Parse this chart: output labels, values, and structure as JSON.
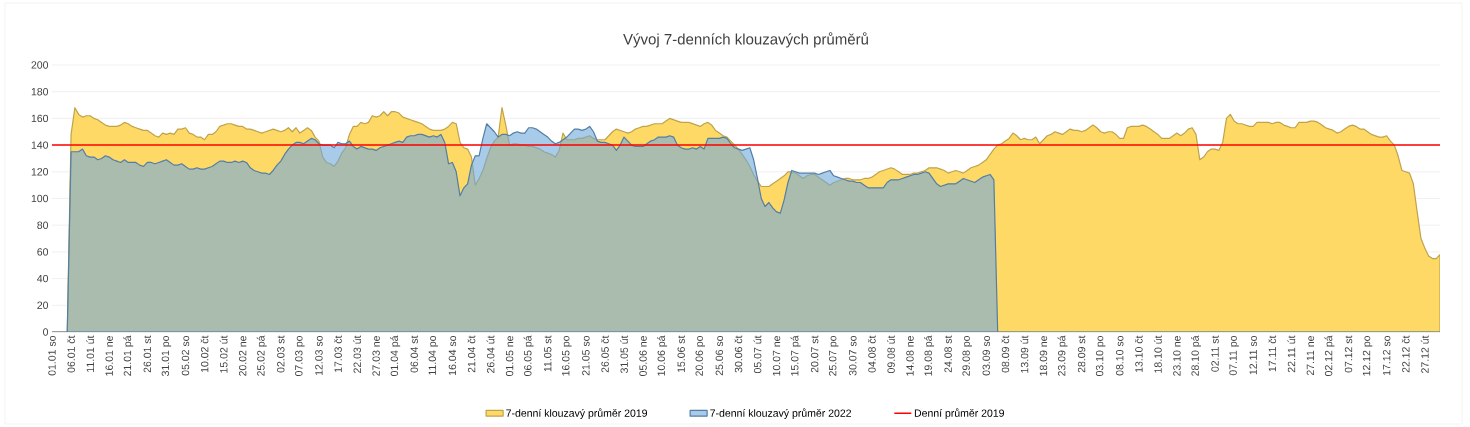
{
  "chart_data": {
    "type": "area",
    "title": "Vývoj 7-denních klouzavých průměrů",
    "categories": [
      "01.01 so",
      null,
      null,
      null,
      null,
      "06.01 čt",
      null,
      null,
      null,
      null,
      "11.01 út",
      null,
      null,
      null,
      null,
      "16.01 ne",
      null,
      null,
      null,
      null,
      "21.01 pá",
      null,
      null,
      null,
      null,
      "26.01 st",
      null,
      null,
      null,
      null,
      "31.01 po",
      null,
      null,
      null,
      null,
      "05.02 so",
      null,
      null,
      null,
      null,
      "10.02 čt",
      null,
      null,
      null,
      null,
      "15.02 út",
      null,
      null,
      null,
      null,
      "20.02 ne",
      null,
      null,
      null,
      null,
      "25.02 pá",
      null,
      null,
      null,
      null,
      "02.03 st",
      null,
      null,
      null,
      null,
      "07.03 po",
      null,
      null,
      null,
      null,
      "12.03 so",
      null,
      null,
      null,
      null,
      "17.03 čt",
      null,
      null,
      null,
      null,
      "22.03 út",
      null,
      null,
      null,
      null,
      "27.03 ne",
      null,
      null,
      null,
      null,
      "01.04 pá",
      null,
      null,
      null,
      null,
      "06.04 st",
      null,
      null,
      null,
      null,
      "11.04 po",
      null,
      null,
      null,
      null,
      "16.04 so",
      null,
      null,
      null,
      null,
      "21.04 čt",
      null,
      null,
      null,
      null,
      "26.04 út",
      null,
      null,
      null,
      null,
      "01.05 ne",
      null,
      null,
      null,
      null,
      "06.05 pá",
      null,
      null,
      null,
      null,
      "11.05 st",
      null,
      null,
      null,
      null,
      "16.05 po",
      null,
      null,
      null,
      null,
      "21.05 so",
      null,
      null,
      null,
      null,
      "26.05 čt",
      null,
      null,
      null,
      null,
      "31.05 út",
      null,
      null,
      null,
      null,
      "05.06 ne",
      null,
      null,
      null,
      null,
      "10.06 pá",
      null,
      null,
      null,
      null,
      "15.06 st",
      null,
      null,
      null,
      null,
      "20.06 po",
      null,
      null,
      null,
      null,
      "25.06 so",
      null,
      null,
      null,
      null,
      "30.06 čt",
      null,
      null,
      null,
      null,
      "05.07 út",
      null,
      null,
      null,
      null,
      "10.07 ne",
      null,
      null,
      null,
      null,
      "15.07 pá",
      null,
      null,
      null,
      null,
      "20.07 st",
      null,
      null,
      null,
      null,
      "25.07 po",
      null,
      null,
      null,
      null,
      "30.07 so",
      null,
      null,
      null,
      null,
      "04.08 čt",
      null,
      null,
      null,
      null,
      "09.08 út",
      null,
      null,
      null,
      null,
      "14.08 ne",
      null,
      null,
      null,
      null,
      "19.08 pá",
      null,
      null,
      null,
      null,
      "24.08 st",
      null,
      null,
      null,
      null,
      "29.08 po",
      null,
      null,
      null,
      null,
      "03.09 so",
      null,
      null,
      null,
      null,
      "08.09 čt",
      null,
      null,
      null,
      null,
      "13.09 út",
      null,
      null,
      null,
      null,
      "18.09 ne",
      null,
      null,
      null,
      null,
      "23.09 pá",
      null,
      null,
      null,
      null,
      "28.09 st",
      null,
      null,
      null,
      null,
      "03.10 po",
      null,
      null,
      null,
      null,
      "08.10 so",
      null,
      null,
      null,
      null,
      "13.10 čt",
      null,
      null,
      null,
      null,
      "18.10 út",
      null,
      null,
      null,
      null,
      "23.10 ne",
      null,
      null,
      null,
      null,
      "28.10 pá",
      null,
      null,
      null,
      null,
      "02.11 st",
      null,
      null,
      null,
      null,
      "07.11 po",
      null,
      null,
      null,
      null,
      "12.11 so",
      null,
      null,
      null,
      null,
      "17.11 čt",
      null,
      null,
      null,
      null,
      "22.11 út",
      null,
      null,
      null,
      null,
      "27.11 ne",
      null,
      null,
      null,
      null,
      "02.12 pá",
      null,
      null,
      null,
      null,
      "07.12 st",
      null,
      null,
      null,
      null,
      "12.12 po",
      null,
      null,
      null,
      null,
      "17.12 so",
      null,
      null,
      null,
      null,
      "22.12 čt",
      null,
      null,
      null,
      null,
      "27.12 út",
      null,
      null,
      null,
      null
    ],
    "series": [
      {
        "name": "7-denní klouzavý průměr 2019",
        "color": "#ffd966",
        "values": [
          0,
          0,
          0,
          0,
          0,
          148,
          168,
          163,
          161,
          162,
          162,
          160,
          159,
          157,
          155,
          154,
          154,
          154,
          155,
          157,
          156,
          154,
          153,
          152,
          151,
          151,
          149,
          147,
          146,
          149,
          148,
          149,
          148,
          152,
          152,
          153,
          149,
          148,
          146,
          146,
          144,
          148,
          148,
          150,
          154,
          155,
          156,
          156,
          155,
          154,
          154,
          152,
          152,
          151,
          150,
          149,
          150,
          151,
          152,
          151,
          150,
          151,
          153,
          150,
          153,
          149,
          151,
          153,
          151,
          146,
          143,
          131,
          127,
          126,
          124,
          128,
          134,
          138,
          148,
          154,
          154,
          157,
          156,
          157,
          162,
          161,
          162,
          165,
          162,
          165,
          165,
          164,
          161,
          160,
          159,
          158,
          157,
          156,
          154,
          152,
          151,
          151,
          151,
          152,
          154,
          157,
          156,
          142,
          138,
          137,
          131,
          110,
          115,
          121,
          130,
          138,
          143,
          146,
          168,
          155,
          140,
          141,
          141,
          140,
          140,
          139,
          139,
          138,
          137,
          135,
          134,
          133,
          131,
          136,
          149,
          144,
          144,
          144,
          145,
          145,
          146,
          147,
          145,
          144,
          144,
          144,
          147,
          150,
          152,
          151,
          150,
          149,
          150,
          152,
          153,
          154,
          154,
          155,
          156,
          156,
          156,
          158,
          160,
          159,
          158,
          157,
          157,
          157,
          156,
          155,
          154,
          156,
          157,
          155,
          151,
          149,
          147,
          146,
          143,
          140,
          137,
          133,
          129,
          124,
          118,
          113,
          109,
          109,
          109,
          111,
          113,
          115,
          117,
          120,
          120,
          119,
          117,
          115,
          117,
          118,
          118,
          116,
          114,
          112,
          110,
          112,
          113,
          114,
          115,
          115,
          114,
          114,
          114,
          115,
          115,
          116,
          118,
          120,
          121,
          122,
          123,
          122,
          120,
          118,
          118,
          118,
          119,
          119,
          120,
          121,
          123,
          123,
          123,
          122,
          121,
          119,
          120,
          121,
          120,
          119,
          121,
          123,
          124,
          125,
          127,
          129,
          133,
          137,
          140,
          141,
          143,
          145,
          149,
          147,
          144,
          145,
          144,
          144,
          146,
          141,
          144,
          147,
          148,
          150,
          149,
          148,
          150,
          152,
          151,
          151,
          150,
          151,
          153,
          155,
          153,
          150,
          149,
          150,
          150,
          148,
          145,
          145,
          153,
          154,
          154,
          154,
          155,
          154,
          152,
          150,
          148,
          145,
          145,
          145,
          147,
          149,
          147,
          149,
          152,
          153,
          148,
          129,
          131,
          135,
          137,
          137,
          136,
          142,
          160,
          163,
          158,
          156,
          156,
          155,
          154,
          154,
          157,
          157,
          157,
          157,
          156,
          157,
          157,
          155,
          154,
          153,
          153,
          157,
          157,
          157,
          158,
          158,
          157,
          155,
          153,
          152,
          151,
          149,
          150,
          152,
          154,
          155,
          154,
          152,
          152,
          150,
          148,
          147,
          146,
          146,
          147,
          143,
          140,
          132,
          121,
          120,
          119,
          111,
          90,
          70,
          63,
          57,
          55,
          55,
          58
        ]
      },
      {
        "name": "7-denní klouzavý průměr 2022",
        "color": "#6fa8dc",
        "values": [
          0,
          0,
          0,
          0,
          0,
          135,
          135,
          135,
          137,
          132,
          131,
          131,
          129,
          130,
          132,
          131,
          129,
          128,
          127,
          129,
          127,
          127,
          127,
          125,
          124,
          127,
          127,
          126,
          127,
          128,
          129,
          127,
          125,
          125,
          126,
          124,
          122,
          122,
          123,
          122,
          122,
          123,
          124,
          126,
          128,
          128,
          127,
          127,
          128,
          127,
          128,
          127,
          123,
          121,
          120,
          119,
          119,
          118,
          121,
          125,
          128,
          133,
          137,
          140,
          142,
          142,
          141,
          143,
          145,
          144,
          141,
          140,
          140,
          140,
          138,
          142,
          141,
          141,
          143,
          139,
          137,
          139,
          138,
          137,
          137,
          136,
          138,
          139,
          140,
          141,
          142,
          143,
          142,
          146,
          147,
          147,
          148,
          148,
          147,
          146,
          147,
          146,
          148,
          142,
          126,
          127,
          120,
          102,
          108,
          111,
          125,
          132,
          132,
          145,
          156,
          153,
          150,
          146,
          148,
          148,
          147,
          149,
          150,
          149,
          149,
          153,
          153,
          152,
          150,
          148,
          146,
          143,
          141,
          142,
          144,
          146,
          149,
          152,
          152,
          151,
          152,
          154,
          150,
          143,
          142,
          142,
          141,
          140,
          136,
          140,
          146,
          143,
          140,
          139,
          139,
          139,
          141,
          143,
          144,
          146,
          146,
          146,
          147,
          146,
          140,
          138,
          137,
          137,
          138,
          137,
          139,
          137,
          145,
          145,
          145,
          145,
          146,
          145,
          141,
          138,
          137,
          136,
          137,
          138,
          129,
          115,
          100,
          94,
          97,
          93,
          90,
          89,
          99,
          112,
          121,
          120,
          119,
          119,
          119,
          119,
          119,
          118,
          119,
          120,
          121,
          117,
          116,
          115,
          114,
          113,
          113,
          112,
          112,
          110,
          108,
          108,
          108,
          108,
          108,
          112,
          114,
          114,
          114,
          115,
          116,
          117,
          118,
          118,
          119,
          120,
          119,
          115,
          111,
          109,
          110,
          111,
          111,
          111,
          113,
          115,
          114,
          113,
          112,
          114,
          116,
          117,
          118,
          114,
          0,
          0,
          0,
          0,
          0,
          0,
          0,
          0,
          0,
          0,
          0,
          0,
          0,
          0,
          0,
          0,
          0,
          0,
          0,
          0,
          0,
          0,
          0,
          0,
          0,
          0,
          0,
          0,
          0,
          0,
          0,
          0,
          0,
          0,
          0,
          0,
          0,
          0,
          0,
          0,
          0,
          0,
          0,
          0,
          0,
          0,
          0,
          0,
          0,
          0,
          0,
          0,
          0,
          0,
          0,
          0,
          0,
          0,
          0,
          0,
          0,
          0,
          0,
          0,
          0,
          0,
          0,
          0,
          0,
          0,
          0,
          0,
          0,
          0,
          0,
          0,
          0,
          0,
          0,
          0,
          0,
          0,
          0,
          0,
          0,
          0,
          0,
          0,
          0,
          0,
          0,
          0,
          0,
          0,
          0,
          0,
          0,
          0,
          0,
          0,
          0,
          0,
          0,
          0,
          0,
          0,
          0,
          0,
          0,
          0,
          0,
          0,
          0,
          0,
          0,
          0,
          0
        ]
      }
    ],
    "ref_lines": [
      {
        "axis": "y",
        "value": 140,
        "label": "Denní průměr 2019",
        "color": "#ff0000"
      }
    ],
    "ylim": [
      0,
      200
    ],
    "yticks": [
      0,
      20,
      40,
      60,
      80,
      100,
      120,
      140,
      160,
      180,
      200
    ],
    "grid": "y",
    "legend": "bottom"
  }
}
